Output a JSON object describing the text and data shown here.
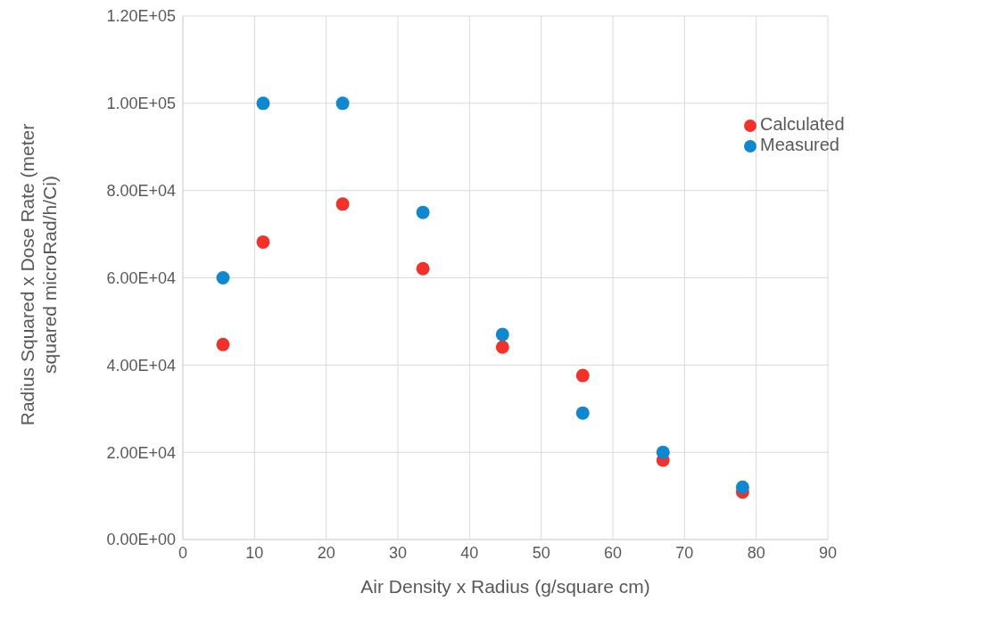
{
  "chart_data": {
    "type": "scatter",
    "xlabel": "Air Density x Radius (g/square cm)",
    "ylabel": "Radius Squared x Dose Rate (meter squared microRad/h/Ci)",
    "x": [
      5.6,
      11.2,
      22.3,
      33.5,
      44.6,
      55.8,
      67,
      78.1
    ],
    "series": [
      {
        "name": "Measured",
        "color": "#0f88d0",
        "values": [
          60000,
          100000,
          100000,
          75000,
          47000,
          29000,
          20000,
          12000
        ]
      },
      {
        "name": "Calculated",
        "color": "#f0322a",
        "values": [
          44700,
          68200,
          76900,
          62100,
          44100,
          37600,
          18200,
          10900
        ]
      }
    ],
    "xlim": [
      0,
      90
    ],
    "xticks": [
      0,
      10,
      20,
      30,
      40,
      50,
      60,
      70,
      80,
      90
    ],
    "ylim": [
      0,
      120000
    ],
    "yticks": [
      {
        "value": 0,
        "label": "0.00E+00"
      },
      {
        "value": 20000,
        "label": "2.00E+04"
      },
      {
        "value": 40000,
        "label": "4.00E+04"
      },
      {
        "value": 60000,
        "label": "6.00E+04"
      },
      {
        "value": 80000,
        "label": "8.00E+04"
      },
      {
        "value": 100000,
        "label": "1.00E+05"
      },
      {
        "value": 120000,
        "label": "1.20E+05"
      }
    ],
    "grid": true,
    "legend": "top right",
    "marker": "circle"
  }
}
